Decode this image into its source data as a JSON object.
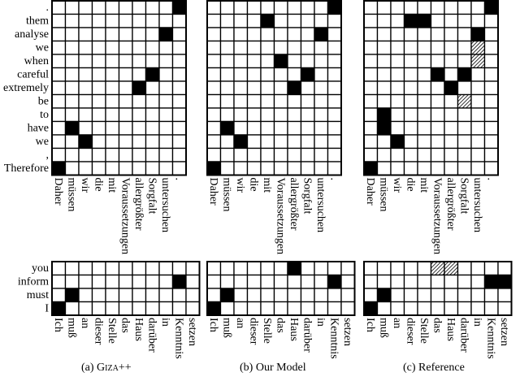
{
  "colors": {
    "sure": "#000000",
    "possible": "hatched",
    "empty": "#ffffff",
    "grid": "#000000"
  },
  "sentences": [
    {
      "source": [
        "Daher",
        "müssen",
        "wir",
        "die",
        "mit",
        "Voraussetzungen",
        "allergrößter",
        "Sorgfalt",
        "untersuchen",
        "."
      ],
      "target": [
        ".",
        "them",
        "analyse",
        "we",
        "when",
        "careful",
        "extremely",
        "be",
        "to",
        "have",
        "we",
        ",",
        "Therefore"
      ]
    },
    {
      "source": [
        "Ich",
        "muß",
        "an",
        "dieser",
        "Stelle",
        "das",
        "Haus",
        "darüber",
        "in",
        "Kenntnis",
        "setzen"
      ],
      "target": [
        "you",
        "inform",
        "must",
        "I"
      ]
    }
  ],
  "panels": [
    {
      "caption_prefix": "(a) ",
      "caption_name": "Giza++",
      "alignments": [
        {
          "sure": [
            [
              0,
              9
            ],
            [
              2,
              8
            ],
            [
              5,
              7
            ],
            [
              6,
              6
            ],
            [
              9,
              1
            ],
            [
              10,
              2
            ],
            [
              12,
              0
            ]
          ],
          "possible": []
        },
        {
          "sure": [
            [
              1,
              9
            ],
            [
              2,
              1
            ],
            [
              3,
              0
            ]
          ],
          "possible": []
        }
      ]
    },
    {
      "caption_prefix": "(b) ",
      "caption_name": "Our Model",
      "alignments": [
        {
          "sure": [
            [
              0,
              9
            ],
            [
              1,
              4
            ],
            [
              2,
              8
            ],
            [
              4,
              5
            ],
            [
              5,
              7
            ],
            [
              6,
              6
            ],
            [
              9,
              1
            ],
            [
              10,
              2
            ],
            [
              12,
              0
            ]
          ],
          "possible": []
        },
        {
          "sure": [
            [
              0,
              6
            ],
            [
              1,
              9
            ],
            [
              2,
              1
            ],
            [
              3,
              0
            ]
          ],
          "possible": []
        }
      ]
    },
    {
      "caption_prefix": "(c) ",
      "caption_name": "Reference",
      "alignments": [
        {
          "sure": [
            [
              0,
              9
            ],
            [
              1,
              3
            ],
            [
              1,
              4
            ],
            [
              2,
              8
            ],
            [
              5,
              5
            ],
            [
              5,
              7
            ],
            [
              6,
              6
            ],
            [
              8,
              1
            ],
            [
              9,
              1
            ],
            [
              10,
              2
            ],
            [
              12,
              0
            ]
          ],
          "possible": [
            [
              3,
              8
            ],
            [
              4,
              8
            ],
            [
              7,
              7
            ]
          ]
        },
        {
          "sure": [
            [
              1,
              9
            ],
            [
              1,
              10
            ],
            [
              2,
              1
            ],
            [
              3,
              0
            ]
          ],
          "possible": [
            [
              0,
              5
            ],
            [
              0,
              6
            ]
          ]
        }
      ]
    }
  ]
}
